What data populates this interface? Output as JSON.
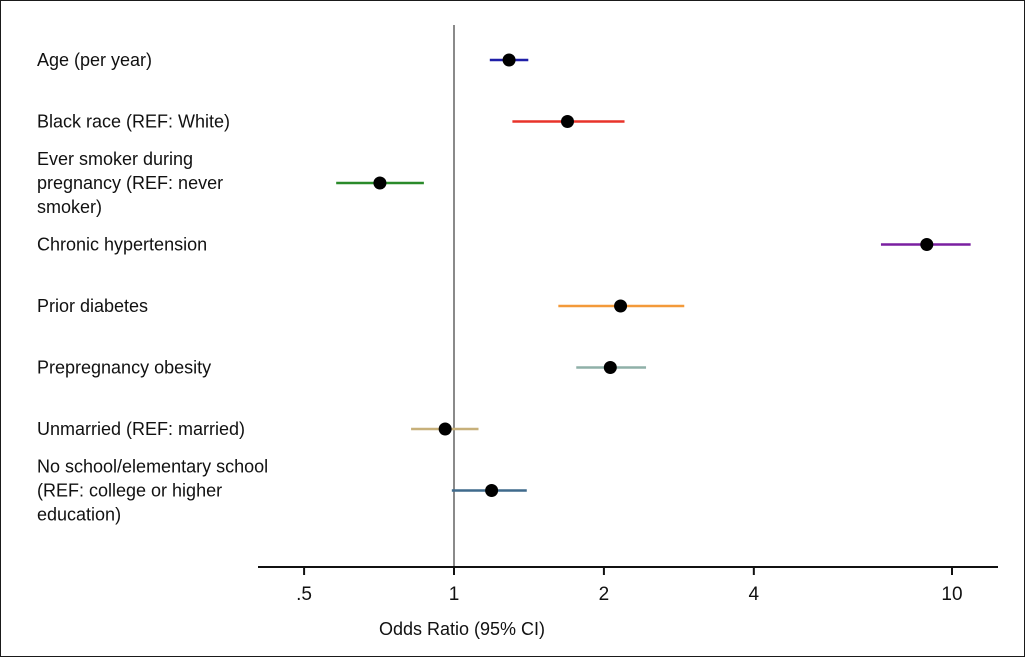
{
  "chart_data": {
    "type": "forest",
    "xlabel": "Odds Ratio (95% CI)",
    "xscale": "log",
    "xlim": [
      0.42,
      13.5
    ],
    "xticks": [
      0.5,
      1,
      2,
      4,
      10
    ],
    "xtick_labels": [
      ".5",
      "1",
      "2",
      "4",
      "10"
    ],
    "reference_line": 1,
    "rows": [
      {
        "label_lines": [
          "Age (per year)"
        ],
        "or": 1.29,
        "ci": [
          1.18,
          1.41
        ],
        "color": "#1f1fa8"
      },
      {
        "label_lines": [
          "Black race (REF: White)"
        ],
        "or": 1.69,
        "ci": [
          1.31,
          2.2
        ],
        "color": "#e8332a"
      },
      {
        "label_lines": [
          "Ever smoker during",
          "pregnancy (REF: never",
          "smoker)"
        ],
        "or": 0.71,
        "ci": [
          0.58,
          0.87
        ],
        "color": "#2a8a2a"
      },
      {
        "label_lines": [
          "Chronic hypertension"
        ],
        "or": 8.9,
        "ci": [
          7.2,
          10.9
        ],
        "color": "#7a1fa0"
      },
      {
        "label_lines": [
          "Prior diabetes"
        ],
        "or": 2.16,
        "ci": [
          1.62,
          2.9
        ],
        "color": "#f39a3a"
      },
      {
        "label_lines": [
          "Prepregnancy obesity"
        ],
        "or": 2.06,
        "ci": [
          1.76,
          2.43
        ],
        "color": "#8fb0a8"
      },
      {
        "label_lines": [
          "Unmarried (REF: married)"
        ],
        "or": 0.96,
        "ci": [
          0.82,
          1.12
        ],
        "color": "#c7b07a"
      },
      {
        "label_lines": [
          "No school/elementary school",
          "(REF: college or higher",
          "education)"
        ],
        "or": 1.19,
        "ci": [
          0.99,
          1.4
        ],
        "color": "#3f6a8c"
      }
    ]
  }
}
